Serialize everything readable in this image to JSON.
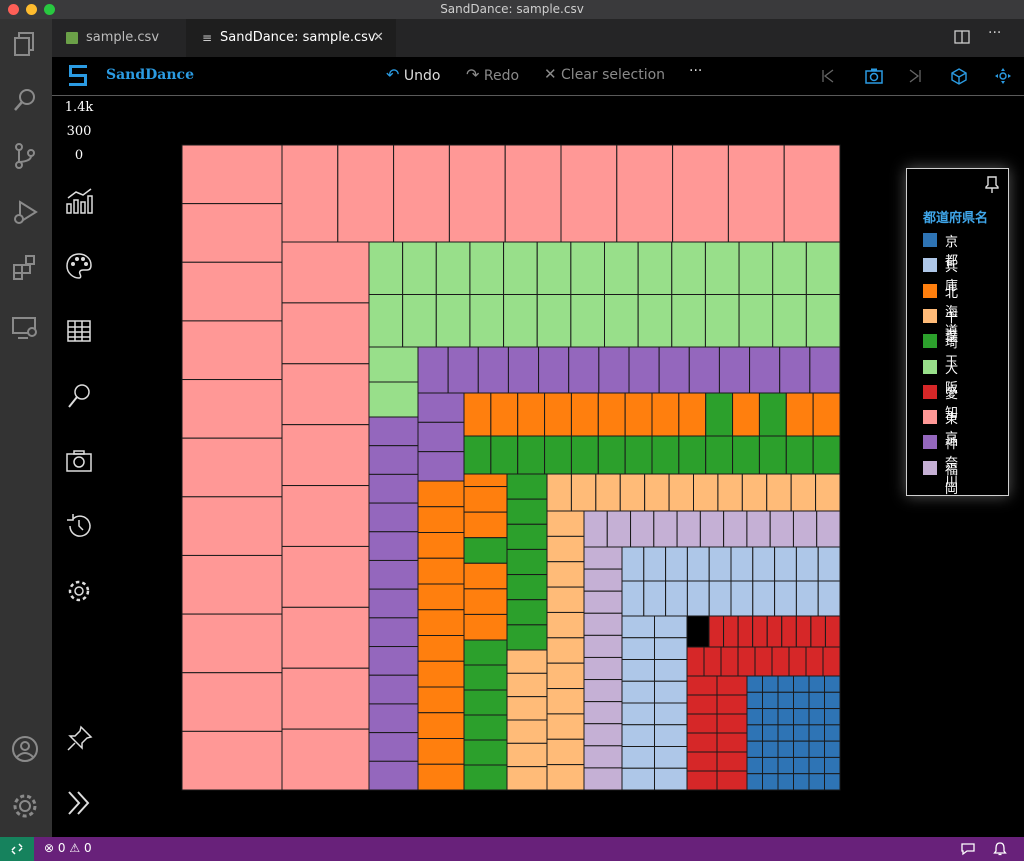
{
  "window": {
    "title": "SandDance: sample.csv"
  },
  "tabs": [
    {
      "label": "sample.csv",
      "icon": "spreadsheet-icon"
    },
    {
      "label": "SandDance: sample.csv",
      "icon": "preview-icon",
      "close": "✕"
    }
  ],
  "toolbar": {
    "brand": "SandDance",
    "undo": "Undo",
    "redo": "Redo",
    "clear": "Clear selection",
    "more": "···"
  },
  "counts": {
    "total": "1.4k",
    "filtered": "300",
    "selected": "0"
  },
  "legend": {
    "title": "都道府県名",
    "items": [
      {
        "label": "京都",
        "color": "#2e74b5"
      },
      {
        "label": "兵庫",
        "color": "#aec7e8"
      },
      {
        "label": "北海道",
        "color": "#ff7f0e"
      },
      {
        "label": "千葉",
        "color": "#ffbb78"
      },
      {
        "label": "埼玉",
        "color": "#2ca02c"
      },
      {
        "label": "大阪",
        "color": "#98df8a"
      },
      {
        "label": "愛知",
        "color": "#d62728"
      },
      {
        "label": "東京",
        "color": "#ff9896"
      },
      {
        "label": "神奈川",
        "color": "#9467bd"
      },
      {
        "label": "福岡",
        "color": "#c5b0d5"
      }
    ]
  },
  "status": {
    "errors": "0",
    "warnings": "0"
  },
  "theme": {
    "accent": "#2b9be2",
    "status_bar": "#68217a",
    "remote": "#16825d"
  }
}
